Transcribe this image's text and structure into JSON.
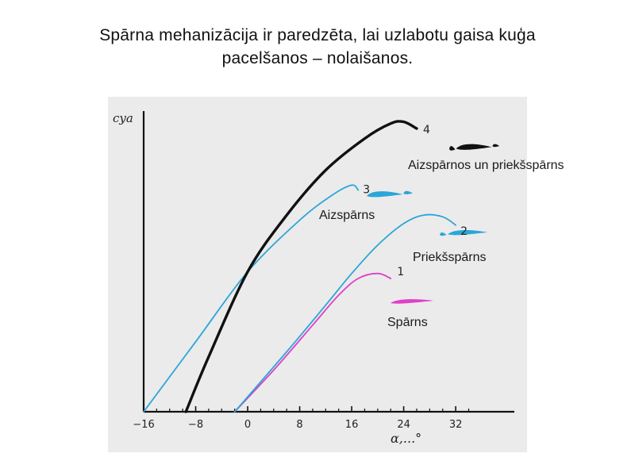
{
  "slide": {
    "title_line1": "Spārna mehanizācija ir paredzēta, lai uzlabotu gaisa kuģa",
    "title_line2": "pacelšanos –  nolaišanos."
  },
  "chart_data": {
    "type": "line",
    "title": "",
    "xlabel": "α,...°",
    "ylabel": "cya",
    "xlim": [
      -18,
      36
    ],
    "x_ticks": [
      "−16",
      "−8",
      "0",
      "8",
      "16",
      "24",
      "32"
    ],
    "x_tick_values": [
      -16,
      -8,
      0,
      8,
      16,
      24,
      32
    ],
    "grid": false,
    "series": [
      {
        "name": "Spārns",
        "label": "1",
        "color": "#e040c8",
        "points": [
          [
            -2,
            0
          ],
          [
            4,
            0.25
          ],
          [
            10,
            0.52
          ],
          [
            14,
            0.7
          ],
          [
            17,
            0.8
          ],
          [
            20,
            0.83
          ],
          [
            22,
            0.8
          ]
        ]
      },
      {
        "name": "Priekšspārns",
        "label": "2",
        "color": "#2aa6d8",
        "points": [
          [
            -2,
            0
          ],
          [
            6,
            0.36
          ],
          [
            12,
            0.64
          ],
          [
            16,
            0.83
          ],
          [
            20,
            1.0
          ],
          [
            24,
            1.13
          ],
          [
            27,
            1.18
          ],
          [
            30,
            1.17
          ],
          [
            32,
            1.12
          ]
        ]
      },
      {
        "name": "Aizspārns",
        "label": "3",
        "color": "#2aa6d8",
        "points": [
          [
            -16,
            0
          ],
          [
            -8,
            0.42
          ],
          [
            0,
            0.84
          ],
          [
            8,
            1.15
          ],
          [
            13,
            1.3
          ],
          [
            16,
            1.36
          ],
          [
            17,
            1.33
          ]
        ]
      },
      {
        "name": "Aizspārnos un priekšspārns",
        "label": "4",
        "color": "#111111",
        "points": [
          [
            -9.5,
            0
          ],
          [
            -6,
            0.33
          ],
          [
            0,
            0.84
          ],
          [
            6,
            1.18
          ],
          [
            12,
            1.45
          ],
          [
            18,
            1.64
          ],
          [
            22,
            1.73
          ],
          [
            24,
            1.74
          ],
          [
            26,
            1.7
          ]
        ]
      }
    ],
    "annotations": [
      {
        "text": "Spārns",
        "series": "1"
      },
      {
        "text": "Priekšspārns",
        "series": "2"
      },
      {
        "text": "Aizspārns",
        "series": "3"
      },
      {
        "text": "Aizspārnos un priekšspārns",
        "series": "4"
      }
    ]
  }
}
